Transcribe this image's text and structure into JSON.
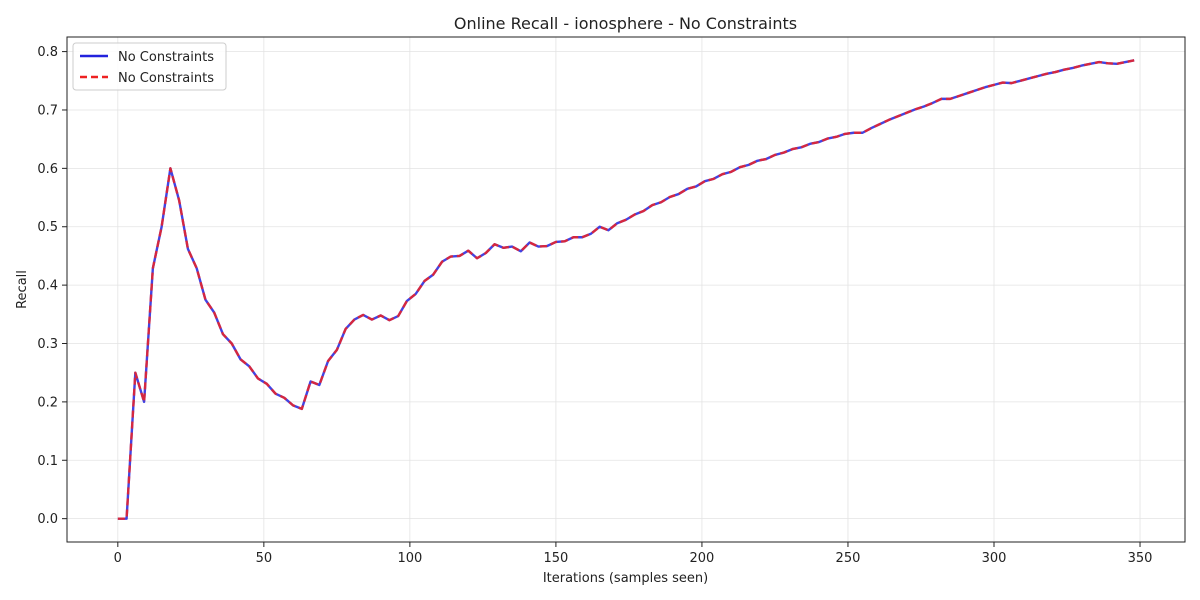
{
  "chart_data": {
    "type": "line",
    "title": "Online Recall - ionosphere - No Constraints",
    "xlabel": "Iterations (samples seen)",
    "ylabel": "Recall",
    "xlim": [
      -17.4,
      365.4
    ],
    "ylim": [
      -0.04,
      0.825
    ],
    "xticks": [
      0,
      50,
      100,
      150,
      200,
      250,
      300,
      350
    ],
    "yticks": [
      0.0,
      0.1,
      0.2,
      0.3,
      0.4,
      0.5,
      0.6,
      0.7,
      0.8
    ],
    "xtick_labels": [
      "0",
      "50",
      "100",
      "150",
      "200",
      "250",
      "300",
      "350"
    ],
    "ytick_labels": [
      "0.0",
      "0.1",
      "0.2",
      "0.3",
      "0.4",
      "0.5",
      "0.6",
      "0.7",
      "0.8"
    ],
    "grid": true,
    "legend_position": "top-left",
    "x": [
      0,
      3,
      6,
      9,
      12,
      15,
      18,
      21,
      24,
      27,
      30,
      33,
      36,
      39,
      42,
      45,
      48,
      51,
      54,
      57,
      60,
      63,
      66,
      69,
      72,
      75,
      78,
      81,
      84,
      87,
      90,
      93,
      96,
      99,
      102,
      105,
      108,
      111,
      114,
      117,
      120,
      123,
      126,
      129,
      132,
      135,
      138,
      141,
      144,
      147,
      150,
      153,
      156,
      159,
      162,
      165,
      168,
      171,
      174,
      177,
      180,
      183,
      186,
      189,
      192,
      195,
      198,
      201,
      204,
      207,
      210,
      213,
      216,
      219,
      222,
      225,
      228,
      231,
      234,
      237,
      240,
      243,
      246,
      249,
      252,
      255,
      258,
      261,
      264,
      267,
      270,
      273,
      276,
      279,
      282,
      285,
      288,
      291,
      294,
      297,
      300,
      303,
      306,
      309,
      312,
      315,
      318,
      321,
      324,
      327,
      330,
      333,
      336,
      339,
      342,
      345,
      348
    ],
    "series": [
      {
        "name": "No Constraints",
        "color": "#2222dd",
        "style": "solid",
        "values": [
          0.0,
          0.0,
          0.25,
          0.2,
          0.429,
          0.5,
          0.6,
          0.545,
          0.462,
          0.429,
          0.375,
          0.353,
          0.316,
          0.3,
          0.273,
          0.261,
          0.24,
          0.231,
          0.214,
          0.207,
          0.194,
          0.188,
          0.235,
          0.229,
          0.27,
          0.289,
          0.325,
          0.341,
          0.349,
          0.341,
          0.348,
          0.34,
          0.347,
          0.373,
          0.385,
          0.407,
          0.418,
          0.44,
          0.449,
          0.45,
          0.459,
          0.446,
          0.455,
          0.47,
          0.464,
          0.466,
          0.458,
          0.473,
          0.466,
          0.467,
          0.474,
          0.475,
          0.482,
          0.482,
          0.488,
          0.5,
          0.494,
          0.506,
          0.512,
          0.521,
          0.527,
          0.537,
          0.542,
          0.551,
          0.556,
          0.565,
          0.569,
          0.578,
          0.582,
          0.59,
          0.594,
          0.602,
          0.606,
          0.613,
          0.616,
          0.623,
          0.627,
          0.633,
          0.636,
          0.642,
          0.645,
          0.651,
          0.654,
          0.659,
          0.661,
          0.661,
          0.669,
          0.676,
          0.683,
          0.689,
          0.695,
          0.701,
          0.706,
          0.712,
          0.719,
          0.719,
          0.724,
          0.729,
          0.734,
          0.739,
          0.743,
          0.747,
          0.746,
          0.75,
          0.754,
          0.758,
          0.762,
          0.765,
          0.769,
          0.772,
          0.776,
          0.779,
          0.782,
          0.78,
          0.779,
          0.782,
          0.785
        ]
      },
      {
        "name": "No Constraints",
        "color": "#ee2222",
        "style": "dashed",
        "values": [
          0.0,
          0.0,
          0.25,
          0.2,
          0.429,
          0.5,
          0.6,
          0.545,
          0.462,
          0.429,
          0.375,
          0.353,
          0.316,
          0.3,
          0.273,
          0.261,
          0.24,
          0.231,
          0.214,
          0.207,
          0.194,
          0.188,
          0.235,
          0.229,
          0.27,
          0.289,
          0.325,
          0.341,
          0.349,
          0.341,
          0.348,
          0.34,
          0.347,
          0.373,
          0.385,
          0.407,
          0.418,
          0.44,
          0.449,
          0.45,
          0.459,
          0.446,
          0.455,
          0.47,
          0.464,
          0.466,
          0.458,
          0.473,
          0.466,
          0.467,
          0.474,
          0.475,
          0.482,
          0.482,
          0.488,
          0.5,
          0.494,
          0.506,
          0.512,
          0.521,
          0.527,
          0.537,
          0.542,
          0.551,
          0.556,
          0.565,
          0.569,
          0.578,
          0.582,
          0.59,
          0.594,
          0.602,
          0.606,
          0.613,
          0.616,
          0.623,
          0.627,
          0.633,
          0.636,
          0.642,
          0.645,
          0.651,
          0.654,
          0.659,
          0.661,
          0.661,
          0.669,
          0.676,
          0.683,
          0.689,
          0.695,
          0.701,
          0.706,
          0.712,
          0.719,
          0.719,
          0.724,
          0.729,
          0.734,
          0.739,
          0.743,
          0.747,
          0.746,
          0.75,
          0.754,
          0.758,
          0.762,
          0.765,
          0.769,
          0.772,
          0.776,
          0.779,
          0.782,
          0.78,
          0.779,
          0.782,
          0.785
        ]
      }
    ]
  }
}
